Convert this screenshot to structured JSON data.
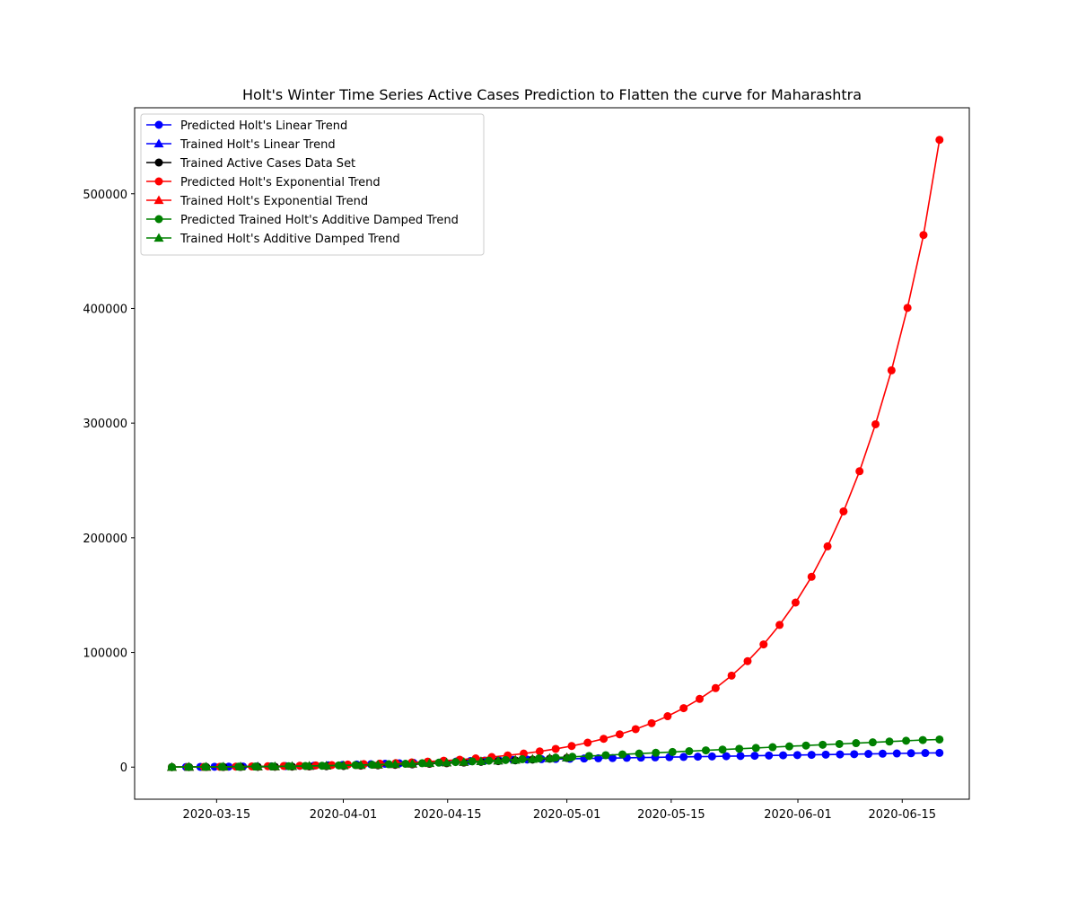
{
  "chart_data": {
    "type": "line",
    "title": "Holt's Winter Time Series Active Cases Prediction to Flatten the curve for Maharashtra",
    "xlabel": "",
    "ylabel": "",
    "x_axis_type": "date",
    "xlim": [
      "2020-03-04",
      "2020-06-24"
    ],
    "ylim": [
      -28000,
      575000
    ],
    "x_ticks": [
      "2020-03-15",
      "2020-04-01",
      "2020-04-15",
      "2020-05-01",
      "2020-05-15",
      "2020-06-01",
      "2020-06-15"
    ],
    "y_ticks": [
      0,
      100000,
      200000,
      300000,
      400000,
      500000
    ],
    "y_tick_labels": [
      "0",
      "100000",
      "200000",
      "300000",
      "400000",
      "500000"
    ],
    "grid": false,
    "legend_position": "top-left",
    "series": [
      {
        "name": "Predicted Holt's Linear Trend",
        "color": "#0000ff",
        "marker": "circle",
        "start": "2020-03-09",
        "end": "2020-06-20",
        "values": [
          0,
          100,
          200,
          300,
          400,
          500,
          600,
          700,
          900,
          1100,
          1300,
          1600,
          1900,
          2200,
          2500,
          2900,
          3300,
          3700,
          4100,
          4500,
          4900,
          5300,
          5700,
          6000,
          6300,
          6600,
          6900,
          7100,
          7300,
          7500,
          7700,
          7900,
          8100,
          8300,
          8500,
          8700,
          8900,
          9100,
          9300,
          9500,
          9700,
          9900,
          10100,
          10300,
          10500,
          10700,
          10900,
          11100,
          11300,
          11500,
          11700,
          11900,
          12100,
          12300,
          12400
        ]
      },
      {
        "name": "Trained Holt's Linear Trend",
        "color": "#0000ff",
        "marker": "triangle",
        "start": "2020-03-09",
        "end": "2020-05-01",
        "values": [
          0,
          100,
          200,
          300,
          400,
          500,
          600,
          800,
          1000,
          1200,
          1500,
          1800,
          2100,
          2500,
          2900,
          3400,
          3900,
          4400,
          5000,
          5600,
          6200,
          6900,
          7600,
          8200
        ]
      },
      {
        "name": "Trained Active Cases Data Set",
        "color": "#000000",
        "marker": "circle",
        "start": "2020-03-09",
        "end": "2020-05-01",
        "values": [
          0,
          20,
          50,
          100,
          150,
          200,
          300,
          400,
          600,
          800,
          1000,
          1300,
          1600,
          2000,
          2400,
          2900,
          3400,
          4000,
          4600,
          5200,
          5900,
          6600,
          7300,
          8000
        ]
      },
      {
        "name": "Predicted Holt's Exponential Trend",
        "color": "#ff0000",
        "marker": "circle",
        "start": "2020-03-09",
        "end": "2020-06-20",
        "values": [
          0,
          100,
          200,
          300,
          400,
          600,
          800,
          1000,
          1200,
          1500,
          1800,
          2200,
          2600,
          3000,
          3500,
          4100,
          4800,
          5600,
          6500,
          7600,
          8800,
          10200,
          11800,
          13700,
          15900,
          18400,
          21300,
          24700,
          28600,
          33100,
          38300,
          44400,
          51400,
          59500,
          68900,
          79800,
          92400,
          107000,
          124000,
          143500,
          166000,
          192500,
          223000,
          258000,
          299000,
          346000,
          400500,
          464000,
          547000
        ]
      },
      {
        "name": "Trained Holt's Exponential Trend",
        "color": "#ff0000",
        "marker": "triangle",
        "start": "2020-03-09",
        "end": "2020-05-01",
        "values": [
          0,
          50,
          100,
          200,
          300,
          400,
          500,
          700,
          900,
          1100,
          1400,
          1700,
          2000,
          2400,
          2800,
          3300,
          3800,
          4400,
          5000,
          5700,
          6400,
          7100,
          7800,
          8500
        ]
      },
      {
        "name": "Predicted Trained Holt's Additive Damped Trend",
        "color": "#008000",
        "marker": "circle",
        "start": "2020-03-09",
        "end": "2020-06-20",
        "values": [
          0,
          100,
          200,
          300,
          400,
          500,
          600,
          800,
          1000,
          1200,
          1500,
          1800,
          2100,
          2500,
          2900,
          3400,
          3900,
          4400,
          5000,
          5600,
          6200,
          6900,
          7600,
          8300,
          9000,
          9700,
          10400,
          11100,
          11800,
          12500,
          13200,
          13900,
          14600,
          15300,
          16000,
          16700,
          17400,
          18100,
          18800,
          19500,
          20200,
          20900,
          21600,
          22300,
          23000,
          23600,
          24100
        ]
      },
      {
        "name": "Trained Holt's Additive Damped Trend",
        "color": "#008000",
        "marker": "triangle",
        "start": "2020-03-09",
        "end": "2020-05-01",
        "values": [
          0,
          100,
          200,
          300,
          400,
          500,
          600,
          800,
          1000,
          1200,
          1500,
          1800,
          2100,
          2500,
          2900,
          3400,
          3900,
          4400,
          5000,
          5600,
          6200,
          6900,
          7600,
          8300
        ]
      }
    ]
  }
}
